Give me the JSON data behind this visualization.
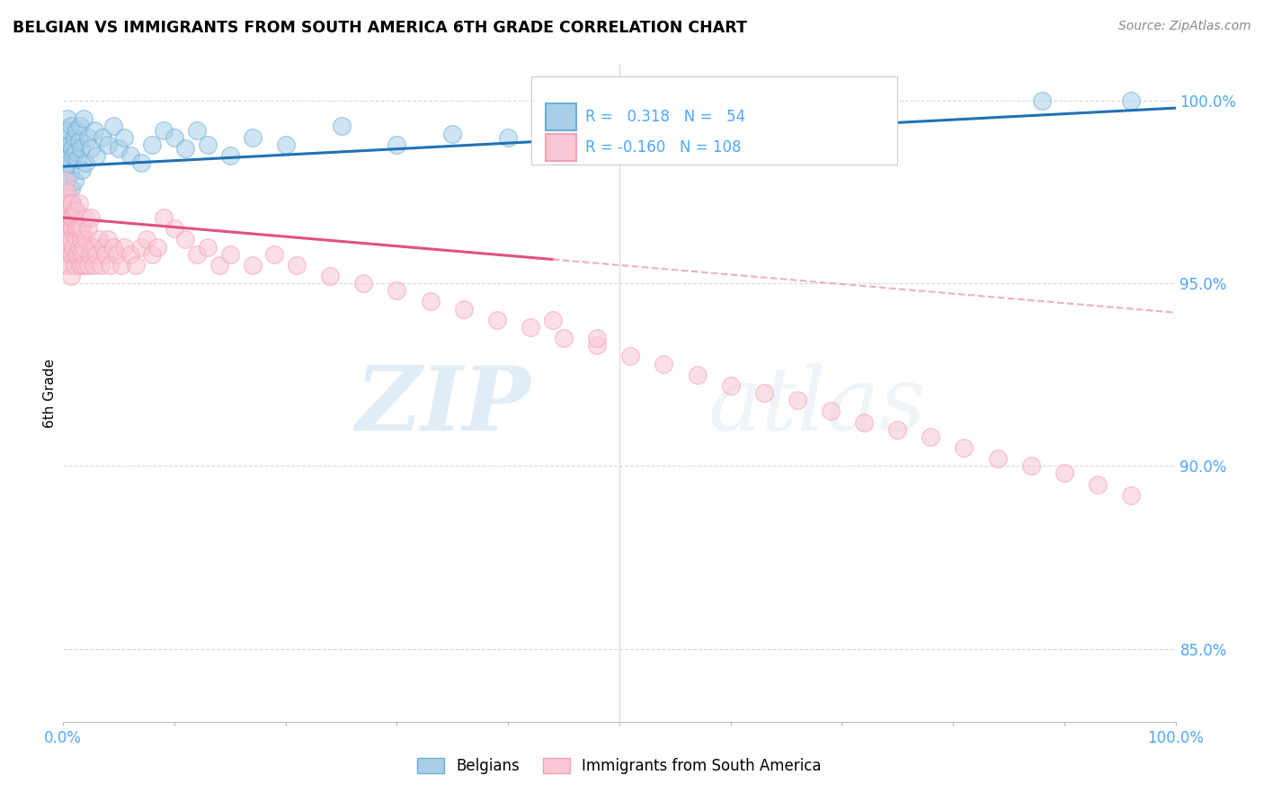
{
  "title": "BELGIAN VS IMMIGRANTS FROM SOUTH AMERICA 6TH GRADE CORRELATION CHART",
  "source": "Source: ZipAtlas.com",
  "ylabel": "6th Grade",
  "watermark_zip": "ZIP",
  "watermark_atlas": "atlas",
  "legend_belgian_r": "0.318",
  "legend_belgian_n": "54",
  "legend_immigrant_r": "-0.160",
  "legend_immigrant_n": "108",
  "belgian_color": "#6baed6",
  "belgian_color_fill": "#a8cfe8",
  "immigrant_color": "#f4a0b5",
  "immigrant_color_fill": "#f9c6d5",
  "trendline_belgian_color": "#2171b5",
  "trendline_immigrant_color": "#e05080",
  "trendline_immigrant_dashed_color": "#e8b0c8",
  "axis_label_color": "#4da6ff",
  "grid_color": "#d8d8d8",
  "background_color": "#ffffff",
  "belgian_x": [
    0.001,
    0.002,
    0.002,
    0.003,
    0.003,
    0.004,
    0.004,
    0.005,
    0.005,
    0.006,
    0.006,
    0.007,
    0.007,
    0.008,
    0.008,
    0.009,
    0.01,
    0.01,
    0.011,
    0.012,
    0.013,
    0.014,
    0.015,
    0.016,
    0.017,
    0.018,
    0.02,
    0.022,
    0.025,
    0.028,
    0.03,
    0.035,
    0.04,
    0.045,
    0.05,
    0.055,
    0.06,
    0.07,
    0.08,
    0.09,
    0.1,
    0.11,
    0.12,
    0.13,
    0.15,
    0.17,
    0.2,
    0.25,
    0.3,
    0.35,
    0.4,
    0.45,
    0.88,
    0.96
  ],
  "belgian_y": [
    0.978,
    0.982,
    0.99,
    0.985,
    0.975,
    0.988,
    0.995,
    0.983,
    0.992,
    0.98,
    0.988,
    0.976,
    0.993,
    0.987,
    0.972,
    0.985,
    0.99,
    0.978,
    0.986,
    0.992,
    0.984,
    0.989,
    0.993,
    0.987,
    0.981,
    0.995,
    0.983,
    0.99,
    0.987,
    0.992,
    0.985,
    0.99,
    0.988,
    0.993,
    0.987,
    0.99,
    0.985,
    0.983,
    0.988,
    0.992,
    0.99,
    0.987,
    0.992,
    0.988,
    0.985,
    0.99,
    0.988,
    0.993,
    0.988,
    0.991,
    0.99,
    0.992,
    1.0,
    1.0
  ],
  "immigrant_x": [
    0.001,
    0.001,
    0.002,
    0.002,
    0.002,
    0.003,
    0.003,
    0.003,
    0.004,
    0.004,
    0.004,
    0.005,
    0.005,
    0.005,
    0.006,
    0.006,
    0.006,
    0.007,
    0.007,
    0.007,
    0.008,
    0.008,
    0.008,
    0.009,
    0.009,
    0.01,
    0.01,
    0.01,
    0.011,
    0.011,
    0.012,
    0.012,
    0.013,
    0.013,
    0.014,
    0.014,
    0.015,
    0.015,
    0.016,
    0.016,
    0.017,
    0.017,
    0.018,
    0.018,
    0.019,
    0.02,
    0.02,
    0.022,
    0.022,
    0.024,
    0.025,
    0.025,
    0.027,
    0.028,
    0.03,
    0.032,
    0.034,
    0.036,
    0.038,
    0.04,
    0.042,
    0.045,
    0.048,
    0.052,
    0.055,
    0.06,
    0.065,
    0.07,
    0.075,
    0.08,
    0.085,
    0.09,
    0.1,
    0.11,
    0.12,
    0.13,
    0.14,
    0.15,
    0.17,
    0.19,
    0.21,
    0.24,
    0.27,
    0.3,
    0.33,
    0.36,
    0.39,
    0.42,
    0.45,
    0.48,
    0.51,
    0.54,
    0.57,
    0.6,
    0.63,
    0.66,
    0.69,
    0.72,
    0.75,
    0.78,
    0.81,
    0.84,
    0.87,
    0.9,
    0.93,
    0.96,
    0.44,
    0.48
  ],
  "immigrant_y": [
    0.968,
    0.975,
    0.962,
    0.97,
    0.978,
    0.965,
    0.972,
    0.955,
    0.968,
    0.96,
    0.975,
    0.963,
    0.97,
    0.955,
    0.966,
    0.958,
    0.972,
    0.962,
    0.968,
    0.952,
    0.965,
    0.958,
    0.972,
    0.96,
    0.968,
    0.963,
    0.97,
    0.955,
    0.965,
    0.958,
    0.962,
    0.97,
    0.958,
    0.965,
    0.96,
    0.972,
    0.955,
    0.965,
    0.958,
    0.962,
    0.955,
    0.965,
    0.958,
    0.96,
    0.955,
    0.962,
    0.968,
    0.955,
    0.965,
    0.958,
    0.96,
    0.968,
    0.955,
    0.96,
    0.958,
    0.962,
    0.955,
    0.96,
    0.958,
    0.962,
    0.955,
    0.96,
    0.958,
    0.955,
    0.96,
    0.958,
    0.955,
    0.96,
    0.962,
    0.958,
    0.96,
    0.968,
    0.965,
    0.962,
    0.958,
    0.96,
    0.955,
    0.958,
    0.955,
    0.958,
    0.955,
    0.952,
    0.95,
    0.948,
    0.945,
    0.943,
    0.94,
    0.938,
    0.935,
    0.933,
    0.93,
    0.928,
    0.925,
    0.922,
    0.92,
    0.918,
    0.915,
    0.912,
    0.91,
    0.908,
    0.905,
    0.902,
    0.9,
    0.898,
    0.895,
    0.892,
    0.94,
    0.935
  ],
  "xlim": [
    0.0,
    1.0
  ],
  "ylim": [
    0.83,
    1.01
  ],
  "yticks": [
    0.85,
    0.9,
    0.95,
    1.0
  ],
  "ytick_labels": [
    "85.0%",
    "90.0%",
    "95.0%",
    "100.0%"
  ],
  "trendline_solid_end": 0.44,
  "belgian_trend_start_y": 0.982,
  "belgian_trend_end_y": 0.998,
  "immigrant_trend_start_y": 0.968,
  "immigrant_trend_end_y": 0.942
}
